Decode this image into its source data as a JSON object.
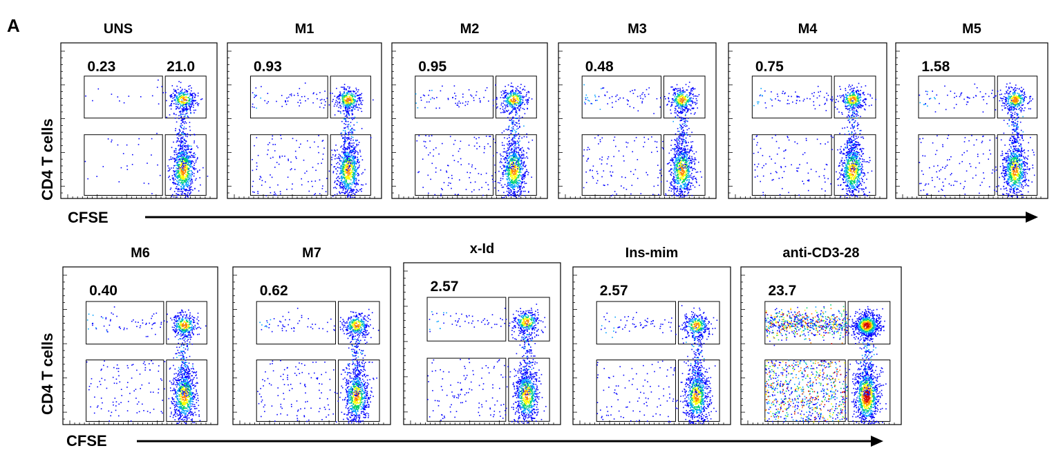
{
  "figure": {
    "panel_letter": "A",
    "y_axis_label": "CD4 T cells",
    "x_axis_label": "CFSE"
  },
  "colors": {
    "density_scale": [
      "#0000ff",
      "#00a0ff",
      "#00d070",
      "#ffff00",
      "#ff8000",
      "#d00000"
    ],
    "gate": "#000000",
    "arrow": "#000000"
  },
  "chart_data": [
    {
      "type": "scatter",
      "title": "UNS",
      "gate_value_left": "0.23",
      "gate_value_right": "21.0"
    },
    {
      "type": "scatter",
      "title": "M1",
      "gate_value_left": "0.93"
    },
    {
      "type": "scatter",
      "title": "M2",
      "gate_value_left": "0.95"
    },
    {
      "type": "scatter",
      "title": "M3",
      "gate_value_left": "0.48"
    },
    {
      "type": "scatter",
      "title": "M4",
      "gate_value_left": "0.75"
    },
    {
      "type": "scatter",
      "title": "M5",
      "gate_value_left": "1.58"
    },
    {
      "type": "scatter",
      "title": "M6",
      "gate_value_left": "0.40"
    },
    {
      "type": "scatter",
      "title": "M7",
      "gate_value_left": "0.62"
    },
    {
      "type": "scatter",
      "title": "x-Id",
      "gate_value_left": "2.57"
    },
    {
      "type": "scatter",
      "title": "Ins-mim",
      "gate_value_left": "2.57"
    },
    {
      "type": "scatter",
      "title": "anti-CD3-28",
      "gate_value_left": "23.7"
    }
  ]
}
